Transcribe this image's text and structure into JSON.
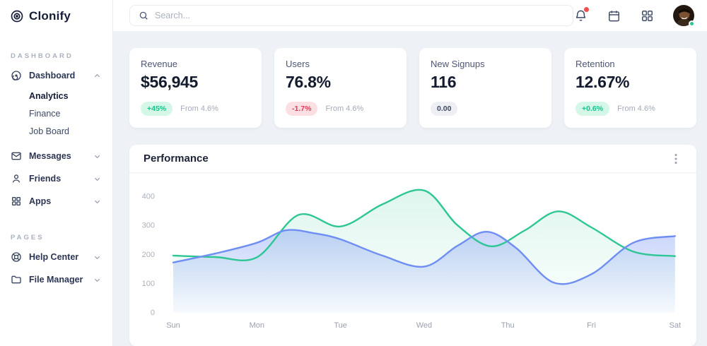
{
  "brand": {
    "name": "Clonify"
  },
  "sidebar": {
    "sections": {
      "dashboard": "DASHBOARD",
      "pages": "PAGES"
    },
    "dashboard_item": "Dashboard",
    "dashboard_children": {
      "analytics": "Analytics",
      "finance": "Finance",
      "job_board": "Job Board"
    },
    "active_child": "Analytics",
    "messages": "Messages",
    "friends": "Friends",
    "apps": "Apps",
    "help_center": "Help Center",
    "file_manager": "File Manager"
  },
  "topbar": {
    "search_placeholder": "Search..."
  },
  "stats": [
    {
      "label": "Revenue",
      "value": "$56,945",
      "badge": "+45%",
      "badge_type": "positive",
      "note": "From 4.6%"
    },
    {
      "label": "Users",
      "value": "76.8%",
      "badge": "-1.7%",
      "badge_type": "negative",
      "note": "From 4.6%"
    },
    {
      "label": "New Signups",
      "value": "116",
      "badge": "0.00",
      "badge_type": "neutral",
      "note": ""
    },
    {
      "label": "Retention",
      "value": "12.67%",
      "badge": "+0.6%",
      "badge_type": "positive",
      "note": "From 4.6%"
    }
  ],
  "chart_data": {
    "type": "area",
    "title": "Performance",
    "x_labels": [
      "Sun",
      "Mon",
      "Tue",
      "Wed",
      "Thu",
      "Fri",
      "Sat"
    ],
    "y_ticks": [
      0,
      100,
      200,
      300,
      400
    ],
    "ylim": [
      0,
      430
    ],
    "grid": false,
    "legend": "none",
    "series": [
      {
        "name": "series-green",
        "color": "#2ec695",
        "fill_top": "rgba(46,198,149,0.16)",
        "fill_bottom": "rgba(46,198,149,0.01)",
        "points": [
          [
            0,
            196
          ],
          [
            0.5,
            191
          ],
          [
            1,
            190
          ],
          [
            1.5,
            336
          ],
          [
            2,
            296
          ],
          [
            2.5,
            372
          ],
          [
            3,
            420
          ],
          [
            3.4,
            300
          ],
          [
            3.8,
            228
          ],
          [
            4.2,
            282
          ],
          [
            4.6,
            348
          ],
          [
            5,
            293
          ],
          [
            5.5,
            210
          ],
          [
            6,
            194
          ]
        ]
      },
      {
        "name": "series-blue",
        "color": "#6f8ef2",
        "fill_top": "rgba(111,142,242,0.38)",
        "fill_bottom": "rgba(111,142,242,0.04)",
        "points": [
          [
            0,
            172
          ],
          [
            0.5,
            203
          ],
          [
            1,
            240
          ],
          [
            1.35,
            283
          ],
          [
            1.7,
            272
          ],
          [
            2,
            252
          ],
          [
            2.5,
            196
          ],
          [
            3,
            158
          ],
          [
            3.4,
            230
          ],
          [
            3.75,
            278
          ],
          [
            4.1,
            222
          ],
          [
            4.55,
            103
          ],
          [
            5,
            132
          ],
          [
            5.5,
            240
          ],
          [
            6,
            263
          ]
        ]
      }
    ]
  },
  "colors": {
    "accent_green": "#2ec695",
    "accent_blue": "#6f8ef2",
    "positive": "#12c48d",
    "negative": "#e63757",
    "notification": "#f14d4d",
    "online": "#2fc48f"
  }
}
